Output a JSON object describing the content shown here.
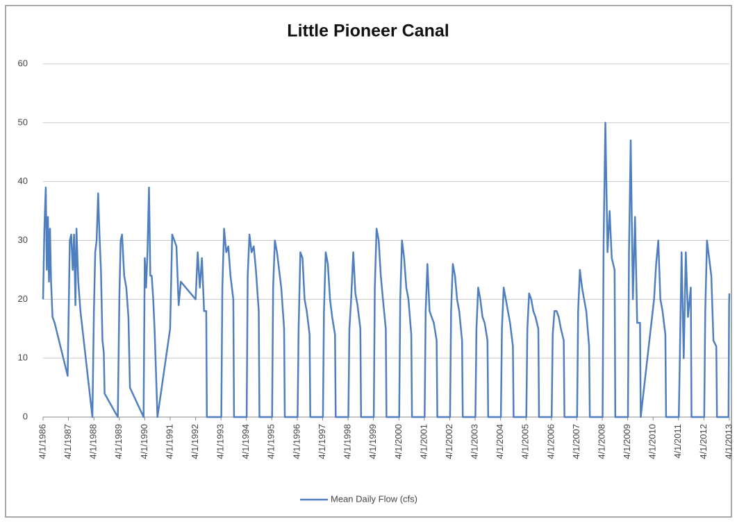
{
  "chart_data": {
    "type": "line",
    "title": "Little Pioneer Canal",
    "x": [
      "1986-04-01",
      "1986-04-20",
      "1986-05-10",
      "1986-05-25",
      "1986-06-10",
      "1986-06-25",
      "1986-07-10",
      "1986-07-25",
      "1986-08-15",
      "1986-09-15",
      "1987-03-20",
      "1987-04-20",
      "1987-05-10",
      "1987-06-01",
      "1987-06-20",
      "1987-07-10",
      "1987-07-25",
      "1987-08-20",
      "1987-09-20",
      "1988-03-10",
      "1988-04-01",
      "1988-04-20",
      "1988-05-10",
      "1988-06-01",
      "1988-06-20",
      "1988-07-10",
      "1988-08-01",
      "1988-08-20",
      "1988-09-01",
      "1989-03-10",
      "1989-04-01",
      "1989-04-20",
      "1989-05-10",
      "1989-06-10",
      "1989-07-10",
      "1989-08-10",
      "1989-09-01",
      "1990-03-15",
      "1990-04-01",
      "1990-04-20",
      "1990-05-10",
      "1990-06-01",
      "1990-06-20",
      "1990-07-10",
      "1990-08-01",
      "1990-08-20",
      "1990-10-01",
      "1991-04-01",
      "1991-05-01",
      "1991-06-01",
      "1991-07-01",
      "1991-08-01",
      "1991-09-01",
      "1992-04-01",
      "1992-05-01",
      "1992-06-01",
      "1992-07-01",
      "1992-08-01",
      "1992-09-01",
      "1992-09-10",
      "1993-04-05",
      "1993-04-20",
      "1993-05-15",
      "1993-06-15",
      "1993-07-15",
      "1993-08-15",
      "1993-09-25",
      "1993-10-05",
      "1994-04-05",
      "1994-04-20",
      "1994-05-15",
      "1994-06-15",
      "1994-07-15",
      "1994-08-15",
      "1994-09-25",
      "1994-10-05",
      "1995-04-05",
      "1995-04-20",
      "1995-05-15",
      "1995-06-15",
      "1995-07-15",
      "1995-08-15",
      "1995-09-25",
      "1995-10-05",
      "1996-04-05",
      "1996-04-20",
      "1996-05-15",
      "1996-06-15",
      "1996-07-15",
      "1996-08-15",
      "1996-09-25",
      "1996-10-05",
      "1997-04-05",
      "1997-04-20",
      "1997-05-15",
      "1997-06-15",
      "1997-07-15",
      "1997-08-15",
      "1997-09-25",
      "1997-10-05",
      "1998-04-05",
      "1998-04-20",
      "1998-05-15",
      "1998-06-15",
      "1998-07-15",
      "1998-08-15",
      "1998-09-25",
      "1998-10-05",
      "1999-04-05",
      "1999-04-20",
      "1999-05-15",
      "1999-06-15",
      "1999-07-15",
      "1999-08-15",
      "1999-09-25",
      "1999-10-05",
      "2000-04-05",
      "2000-04-20",
      "2000-05-15",
      "2000-06-15",
      "2000-07-15",
      "2000-08-15",
      "2000-09-25",
      "2000-10-05",
      "2001-04-05",
      "2001-04-20",
      "2001-05-15",
      "2001-06-15",
      "2001-07-15",
      "2001-08-15",
      "2001-09-25",
      "2001-10-05",
      "2002-04-05",
      "2002-04-20",
      "2002-05-15",
      "2002-06-15",
      "2002-07-15",
      "2002-08-15",
      "2002-09-25",
      "2002-10-05",
      "2003-04-05",
      "2003-04-20",
      "2003-05-15",
      "2003-06-15",
      "2003-07-15",
      "2003-08-15",
      "2003-09-25",
      "2003-10-05",
      "2004-04-05",
      "2004-04-20",
      "2004-05-15",
      "2004-06-15",
      "2004-07-15",
      "2004-08-15",
      "2004-09-25",
      "2004-10-05",
      "2005-04-05",
      "2005-04-20",
      "2005-05-15",
      "2005-06-15",
      "2005-07-15",
      "2005-08-15",
      "2005-09-25",
      "2005-10-05",
      "2006-04-05",
      "2006-04-20",
      "2006-05-15",
      "2006-06-15",
      "2006-07-15",
      "2006-08-15",
      "2006-09-25",
      "2006-10-05",
      "2007-04-05",
      "2007-04-20",
      "2007-05-15",
      "2007-06-15",
      "2007-07-15",
      "2007-08-15",
      "2007-09-25",
      "2007-10-05",
      "2008-04-05",
      "2008-04-20",
      "2008-05-15",
      "2008-06-15",
      "2008-07-15",
      "2008-08-15",
      "2008-09-25",
      "2008-10-05",
      "2009-04-05",
      "2009-04-20",
      "2009-05-15",
      "2009-06-15",
      "2009-07-15",
      "2009-08-15",
      "2009-09-25",
      "2009-10-05",
      "2010-04-15",
      "2010-05-15",
      "2010-06-15",
      "2010-07-15",
      "2010-08-15",
      "2010-09-25",
      "2010-10-05",
      "2011-04-05",
      "2011-04-20",
      "2011-05-15",
      "2011-06-15",
      "2011-07-15",
      "2011-08-15",
      "2011-09-25",
      "2011-10-05",
      "2012-04-05",
      "2012-04-20",
      "2012-05-15",
      "2012-06-15",
      "2012-07-15",
      "2012-08-15",
      "2012-09-25",
      "2012-10-05",
      "2013-03-20",
      "2013-03-28",
      "2013-04-01"
    ],
    "series": [
      {
        "name": "Mean Daily Flow (cfs)",
        "color": "#4f7fbf",
        "values": [
          20,
          32,
          39,
          25,
          34,
          23,
          32,
          23,
          17,
          16,
          7,
          30,
          31,
          25,
          31,
          19,
          32,
          23,
          18,
          0,
          18,
          28,
          30,
          38,
          31,
          25,
          13,
          11,
          4,
          0,
          20,
          30,
          31,
          24,
          22,
          17,
          5,
          0,
          27,
          22,
          28,
          39,
          24,
          24,
          20,
          15,
          0,
          15,
          31,
          30,
          29,
          19,
          23,
          20,
          28,
          22,
          27,
          18,
          18,
          0,
          0,
          22,
          32,
          28,
          29,
          24,
          20,
          0,
          0,
          24,
          31,
          28,
          29,
          25,
          18,
          0,
          0,
          22,
          30,
          28,
          25,
          22,
          15,
          0,
          0,
          15,
          28,
          27,
          20,
          18,
          14,
          0,
          0,
          18,
          28,
          26,
          20,
          17,
          14,
          0,
          0,
          15,
          20,
          28,
          21,
          19,
          15,
          0,
          0,
          22,
          32,
          30,
          24,
          20,
          15,
          0,
          0,
          20,
          30,
          27,
          22,
          20,
          14,
          0,
          0,
          18,
          26,
          18,
          17,
          16,
          13,
          0,
          0,
          18,
          26,
          24,
          20,
          18,
          13,
          0,
          0,
          15,
          22,
          20,
          17,
          16,
          13,
          0,
          0,
          15,
          22,
          20,
          18,
          16,
          12,
          0,
          0,
          15,
          21,
          20,
          18,
          17,
          15,
          0,
          0,
          14,
          18,
          18,
          17,
          15,
          13,
          0,
          0,
          18,
          25,
          22,
          20,
          18,
          12,
          0,
          0,
          30,
          50,
          28,
          35,
          27,
          25,
          0,
          0,
          28,
          47,
          20,
          34,
          16,
          16,
          0,
          20,
          26,
          30,
          20,
          18,
          14,
          0,
          0,
          10,
          28,
          10,
          28,
          17,
          22,
          0,
          0,
          18,
          30,
          27,
          24,
          13,
          12,
          0,
          0,
          19,
          21
        ]
      }
    ],
    "xlim": [
      "1986-04-01",
      "2013-04-01"
    ],
    "xticks": [
      {
        "value": "1986-04-01",
        "label": "4/1/1986"
      },
      {
        "value": "1987-04-01",
        "label": "4/1/1987"
      },
      {
        "value": "1988-04-01",
        "label": "4/1/1988"
      },
      {
        "value": "1989-04-01",
        "label": "4/1/1989"
      },
      {
        "value": "1990-04-01",
        "label": "4/1/1990"
      },
      {
        "value": "1991-04-01",
        "label": "4/1/1991"
      },
      {
        "value": "1992-04-01",
        "label": "4/1/1992"
      },
      {
        "value": "1993-04-01",
        "label": "4/1/1993"
      },
      {
        "value": "1994-04-01",
        "label": "4/1/1994"
      },
      {
        "value": "1995-04-01",
        "label": "4/1/1995"
      },
      {
        "value": "1996-04-01",
        "label": "4/1/1996"
      },
      {
        "value": "1997-04-01",
        "label": "4/1/1997"
      },
      {
        "value": "1998-04-01",
        "label": "4/1/1998"
      },
      {
        "value": "1999-04-01",
        "label": "4/1/1999"
      },
      {
        "value": "2000-04-01",
        "label": "4/1/2000"
      },
      {
        "value": "2001-04-01",
        "label": "4/1/2001"
      },
      {
        "value": "2002-04-01",
        "label": "4/1/2002"
      },
      {
        "value": "2003-04-01",
        "label": "4/1/2003"
      },
      {
        "value": "2004-04-01",
        "label": "4/1/2004"
      },
      {
        "value": "2005-04-01",
        "label": "4/1/2005"
      },
      {
        "value": "2006-04-01",
        "label": "4/1/2006"
      },
      {
        "value": "2007-04-01",
        "label": "4/1/2007"
      },
      {
        "value": "2008-04-01",
        "label": "4/1/2008"
      },
      {
        "value": "2009-04-01",
        "label": "4/1/2009"
      },
      {
        "value": "2010-04-01",
        "label": "4/1/2010"
      },
      {
        "value": "2011-04-01",
        "label": "4/1/2011"
      },
      {
        "value": "2012-04-01",
        "label": "4/1/2012"
      },
      {
        "value": "2013-04-01",
        "label": "4/1/2013"
      }
    ],
    "ylim": [
      0,
      60
    ],
    "yticks": [
      0,
      10,
      20,
      30,
      40,
      50,
      60
    ],
    "grid": true,
    "legend": "bottom"
  }
}
